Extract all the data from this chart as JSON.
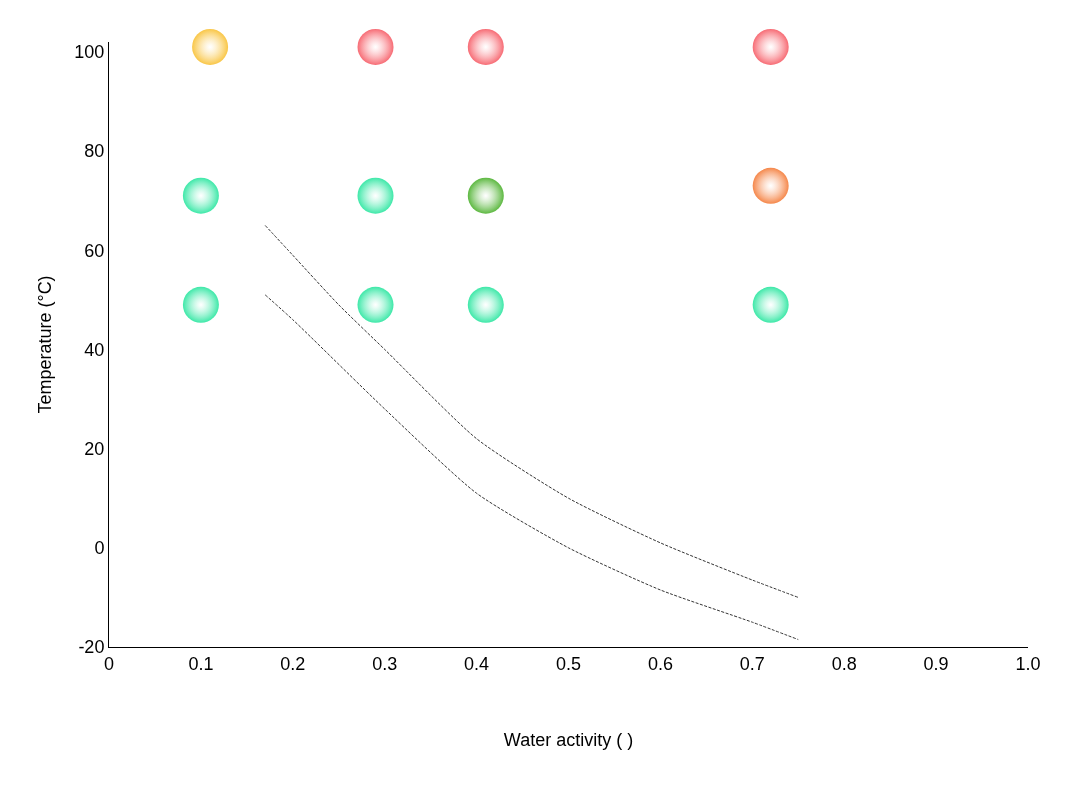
{
  "chart_data": {
    "type": "scatter",
    "xlabel": "Water activity ( )",
    "ylabel": "Temperature (°C)",
    "xlim": [
      0,
      1
    ],
    "ylim": [
      -20,
      102
    ],
    "xticks": [
      0,
      0.1,
      0.2,
      0.3,
      0.4,
      0.5,
      0.6,
      0.7,
      0.8,
      0.9,
      {
        "value": 1,
        "label": "1.0"
      }
    ],
    "yticks": [
      -20,
      0,
      20,
      40,
      60,
      80,
      100
    ],
    "grid": false,
    "marker": "circle",
    "series": [
      {
        "x": [
          0.11,
          0.29,
          0.41,
          0.72,
          0.1,
          0.29,
          0.41,
          0.72,
          0.1,
          0.29,
          0.41,
          0.72
        ],
        "values": [
          101,
          101,
          101,
          101,
          71,
          71,
          71,
          73,
          49,
          49,
          49,
          49
        ],
        "colors": [
          "#f9c646",
          "#f76b74",
          "#f76b74",
          "#f76b74",
          "#3de8a8",
          "#3de8a8",
          "#5cb840",
          "#f5874a",
          "#3de8a8",
          "#3de8a8",
          "#3de8a8",
          "#3de8a8"
        ]
      },
      {
        "type": "line",
        "line_style": "dashed",
        "marker": "none",
        "color": "#333333",
        "x": [
          0.17,
          0.2,
          0.25,
          0.3,
          0.4,
          0.5,
          0.6,
          0.7,
          0.75
        ],
        "values": [
          65,
          59,
          49,
          40,
          22,
          10,
          1,
          -6.5,
          -10
        ]
      },
      {
        "type": "line",
        "line_style": "dashed",
        "marker": "none",
        "color": "#333333",
        "x": [
          0.17,
          0.2,
          0.3,
          0.4,
          0.5,
          0.6,
          0.7,
          0.75
        ],
        "values": [
          51,
          46,
          28,
          11,
          0,
          -8.5,
          -15,
          -18.5
        ]
      }
    ]
  }
}
